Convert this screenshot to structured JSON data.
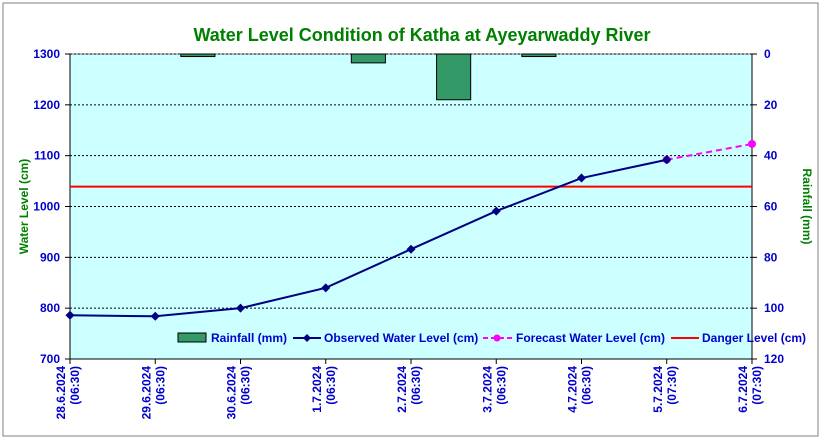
{
  "colors": {
    "plot_bg": "#ccffff",
    "rainfall": "#339966",
    "observed": "#000080",
    "forecast": "#ff00ff",
    "danger": "#ff0000",
    "title": "#008000",
    "tick_text": "#0000cc",
    "axis_label": "#008000"
  },
  "chart_data": {
    "type": "line",
    "title": "Water Level Condition of Katha at Ayeyarwaddy River",
    "ylabel": "Water Level (cm)",
    "y2label": "Rainfall (mm)",
    "ylim": [
      700,
      1300
    ],
    "y_ticks": [
      "1300",
      "1200",
      "1100",
      "1000",
      "900",
      "800",
      "700"
    ],
    "y2lim": [
      0,
      120
    ],
    "y2_reversed": true,
    "y2_ticks": [
      "0",
      "20",
      "40",
      "60",
      "80",
      "100",
      "120"
    ],
    "grid": true,
    "legend_placement": "bottom",
    "categories": [
      [
        "28.6.2024",
        "(06:30)"
      ],
      [
        "29.6.2024",
        "(06:30)"
      ],
      [
        "30.6.2024",
        "(06:30)"
      ],
      [
        "1.7.2024",
        "(06:30)"
      ],
      [
        "2.7.2024",
        "(06:30)"
      ],
      [
        "3.7.2024",
        "(06:30)"
      ],
      [
        "4.7.2024",
        "(06:30)"
      ],
      [
        "5.7.2024",
        "(07:30)"
      ],
      [
        "6.7.2024",
        "(07:30)"
      ]
    ],
    "series": [
      {
        "name": "Rainfall (mm)",
        "type": "bar",
        "axis": "right",
        "values": [
          0,
          1,
          0,
          3.5,
          18,
          1,
          0,
          0,
          null
        ]
      },
      {
        "name": "Observed Water Level (cm)",
        "type": "line",
        "axis": "left",
        "values": [
          786,
          784,
          800,
          840,
          916,
          991,
          1056,
          1092,
          null
        ]
      },
      {
        "name": "Forecast Water Level (cm)",
        "type": "line",
        "axis": "left",
        "dashed": true,
        "values": [
          null,
          null,
          null,
          null,
          null,
          null,
          null,
          1092,
          1123
        ]
      },
      {
        "name": "Danger Level (cm)",
        "type": "hline",
        "axis": "left",
        "value": 1039
      }
    ]
  }
}
